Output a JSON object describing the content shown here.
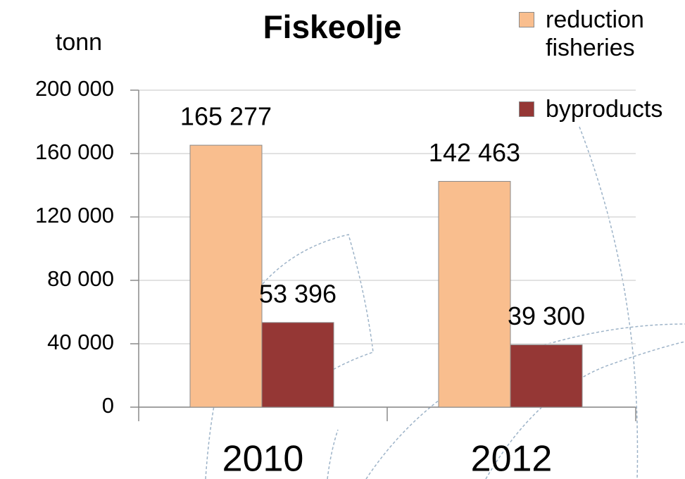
{
  "chart_data": {
    "type": "bar",
    "title": "Fiskeolje",
    "y_label": "tonn",
    "categories": [
      "2010",
      "2012"
    ],
    "series": [
      {
        "name": "reduction fisheries",
        "color": "#f9be8e",
        "values": [
          165277,
          142463
        ],
        "value_labels": [
          "165 277",
          "142 463"
        ]
      },
      {
        "name": "byproducts",
        "color": "#953735",
        "values": [
          53396,
          39300
        ],
        "value_labels": [
          "53 396",
          "39 300"
        ]
      }
    ],
    "ylim": [
      0,
      200000
    ],
    "yticks": [
      0,
      {
        "value": 40000,
        "label": "40 000"
      },
      {
        "value": 80000,
        "label": "80 000"
      },
      {
        "value": 120000,
        "label": "120 000"
      },
      {
        "value": 160000,
        "label": "160 000"
      },
      {
        "value": 200000,
        "label": "200 000"
      }
    ],
    "grid": true
  }
}
